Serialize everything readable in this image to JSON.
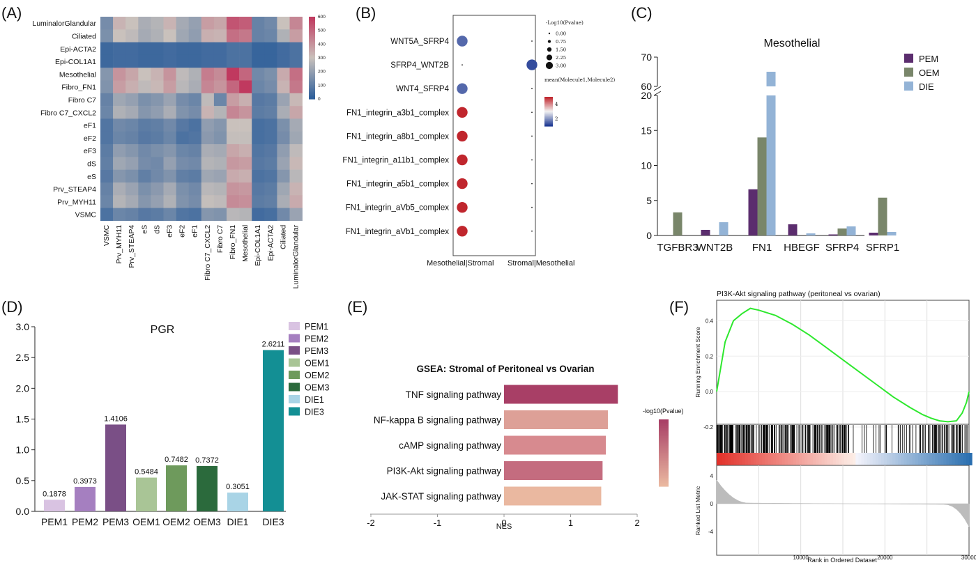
{
  "panel_labels": [
    "(A)",
    "(B)",
    "(C)",
    "(D)",
    "(E)",
    "(F)"
  ],
  "chart_data": [
    {
      "panel": "A",
      "type": "heatmap",
      "rows": [
        "LuminalorGlandular",
        "Ciliated",
        "Epi-ACTA2",
        "Epi-COL1A1",
        "Mesothelial",
        "Fibro_FN1",
        "Fibro C7",
        "Fibro C7_CXCL2",
        "eF1",
        "eF2",
        "eF3",
        "dS",
        "eS",
        "Prv_STEAP4",
        "Prv_MYH11",
        "VSMC"
      ],
      "columns": [
        "VSMC",
        "Prv_MYH11",
        "Prv_STEAP4",
        "eS",
        "dS",
        "eF3",
        "eF2",
        "eF1",
        "Fibro C7_CXCL2",
        "Fibro C7",
        "Fibro_FN1",
        "Mesothelial",
        "Epi-COL1A1",
        "Epi-ACTA2",
        "Ciliated",
        "LuminalorGlandular"
      ],
      "values": [
        [
          140,
          330,
          300,
          240,
          260,
          330,
          230,
          200,
          380,
          360,
          540,
          520,
          110,
          130,
          300,
          430
        ],
        [
          150,
          300,
          280,
          230,
          250,
          300,
          220,
          190,
          340,
          330,
          480,
          460,
          110,
          120,
          250,
          380
        ],
        [
          30,
          40,
          40,
          30,
          30,
          40,
          30,
          30,
          40,
          40,
          60,
          60,
          20,
          20,
          40,
          60
        ],
        [
          30,
          40,
          40,
          30,
          30,
          40,
          30,
          30,
          40,
          40,
          60,
          60,
          20,
          20,
          40,
          60
        ],
        [
          170,
          400,
          360,
          300,
          330,
          400,
          280,
          250,
          450,
          420,
          620,
          500,
          130,
          150,
          350,
          480
        ],
        [
          160,
          380,
          340,
          280,
          320,
          380,
          270,
          240,
          430,
          400,
          500,
          600,
          120,
          140,
          330,
          460
        ],
        [
          110,
          220,
          200,
          150,
          170,
          210,
          140,
          120,
          280,
          120,
          380,
          340,
          80,
          90,
          210,
          320
        ],
        [
          120,
          250,
          230,
          170,
          190,
          240,
          160,
          140,
          330,
          260,
          430,
          400,
          90,
          100,
          240,
          360
        ],
        [
          70,
          130,
          120,
          90,
          100,
          130,
          80,
          60,
          190,
          170,
          300,
          300,
          50,
          60,
          150,
          230
        ],
        [
          70,
          120,
          110,
          80,
          90,
          120,
          60,
          70,
          180,
          160,
          290,
          290,
          50,
          60,
          140,
          220
        ],
        [
          90,
          190,
          170,
          130,
          150,
          170,
          120,
          110,
          240,
          230,
          360,
          340,
          70,
          80,
          190,
          280
        ],
        [
          100,
          220,
          200,
          140,
          130,
          200,
          140,
          130,
          260,
          250,
          390,
          380,
          80,
          90,
          210,
          320
        ],
        [
          80,
          170,
          150,
          100,
          130,
          160,
          100,
          90,
          220,
          210,
          350,
          340,
          60,
          70,
          170,
          270
        ],
        [
          110,
          240,
          210,
          150,
          180,
          230,
          150,
          130,
          270,
          260,
          400,
          390,
          80,
          90,
          220,
          330
        ],
        [
          120,
          260,
          230,
          170,
          200,
          250,
          160,
          140,
          290,
          280,
          420,
          410,
          90,
          100,
          240,
          350
        ],
        [
          60,
          120,
          110,
          80,
          90,
          120,
          70,
          60,
          170,
          160,
          270,
          260,
          40,
          50,
          130,
          210
        ]
      ],
      "colorbar": {
        "min": 0,
        "max": 600,
        "ticks": [
          0,
          100,
          200,
          300,
          400,
          500,
          600
        ],
        "low": "#2d5e9a",
        "mid": "#c9c1bc",
        "high": "#c0395f"
      }
    },
    {
      "panel": "B",
      "type": "scatter",
      "pairs": [
        "WNT5A_SFRP4",
        "SFRP4_WNT2B",
        "WNT4_SFRP4",
        "FN1_integrin_a3b1_complex",
        "FN1_integrin_a8b1_complex",
        "FN1_integrin_a11b1_complex",
        "FN1_integrin_a5b1_complex",
        "FN1_integrin_aVb5_complex",
        "FN1_integrin_aVb1_complex"
      ],
      "x_categories": [
        "Mesothelial|Stromal",
        "Stromal|Mesothelial"
      ],
      "points": [
        {
          "pair": 0,
          "x": 0,
          "size": 3.0,
          "mean": 1.5
        },
        {
          "pair": 0,
          "x": 1,
          "size": 0.0,
          "mean": 1.0
        },
        {
          "pair": 1,
          "x": 0,
          "size": 0.0,
          "mean": 1.0
        },
        {
          "pair": 1,
          "x": 1,
          "size": 3.0,
          "mean": 1.2
        },
        {
          "pair": 2,
          "x": 0,
          "size": 3.0,
          "mean": 1.5
        },
        {
          "pair": 2,
          "x": 1,
          "size": 0.0,
          "mean": 1.0
        },
        {
          "pair": 3,
          "x": 0,
          "size": 3.0,
          "mean": 5.0
        },
        {
          "pair": 3,
          "x": 1,
          "size": 0.0,
          "mean": 1.0
        },
        {
          "pair": 4,
          "x": 0,
          "size": 3.0,
          "mean": 5.0
        },
        {
          "pair": 4,
          "x": 1,
          "size": 0.0,
          "mean": 1.0
        },
        {
          "pair": 5,
          "x": 0,
          "size": 3.0,
          "mean": 5.0
        },
        {
          "pair": 5,
          "x": 1,
          "size": 0.0,
          "mean": 1.0
        },
        {
          "pair": 6,
          "x": 0,
          "size": 3.0,
          "mean": 5.0
        },
        {
          "pair": 6,
          "x": 1,
          "size": 0.0,
          "mean": 1.0
        },
        {
          "pair": 7,
          "x": 0,
          "size": 3.0,
          "mean": 5.0
        },
        {
          "pair": 7,
          "x": 1,
          "size": 0.0,
          "mean": 1.0
        },
        {
          "pair": 8,
          "x": 0,
          "size": 3.0,
          "mean": 5.0
        },
        {
          "pair": 8,
          "x": 1,
          "size": 0.0,
          "mean": 1.0
        }
      ],
      "size_legend": {
        "title": "-Log10(Pvalue)",
        "values": [
          0.0,
          0.75,
          1.5,
          2.25,
          3.0
        ],
        "labels": [
          "0.00",
          "0.75",
          "1.50",
          "2.25",
          "3.00"
        ]
      },
      "color_legend": {
        "title": "mean(Molecule1,Molecule2)",
        "ticks": [
          2,
          4
        ],
        "range": [
          1,
          5
        ]
      }
    },
    {
      "panel": "C",
      "type": "bar",
      "title": "Mesothelial",
      "categories": [
        "TGFBR3",
        "WNT2B",
        "FN1",
        "HBEGF",
        "SFRP4",
        "SFRP1"
      ],
      "series": [
        {
          "name": "PEM",
          "values": [
            0,
            0.8,
            6.6,
            1.6,
            0.15,
            0.4
          ],
          "color": "#5b2d6e"
        },
        {
          "name": "OEM",
          "values": [
            3.3,
            0,
            14.0,
            0,
            1.0,
            5.4
          ],
          "color": "#79866a"
        },
        {
          "name": "DIE",
          "values": [
            0,
            1.9,
            65,
            0.3,
            1.3,
            0.5
          ],
          "color": "#93b3d6"
        }
      ],
      "y_lower_ticks": [
        0,
        5,
        10,
        15,
        20
      ],
      "y_upper_ticks": [
        60,
        70
      ],
      "y_break": [
        20,
        60
      ]
    },
    {
      "panel": "D",
      "type": "bar",
      "title": "PGR",
      "categories": [
        "PEM1",
        "PEM2",
        "PEM3",
        "OEM1",
        "OEM2",
        "OEM3",
        "DIE1",
        "DIE3"
      ],
      "values": [
        0.1878,
        0.3973,
        1.4106,
        0.5484,
        0.7482,
        0.7372,
        0.3051,
        2.6211
      ],
      "value_labels": [
        "0.1878",
        "0.3973",
        "1.4106",
        "0.5484",
        "0.7482",
        "0.7372",
        "0.3051",
        "2.6211"
      ],
      "colors": [
        "#d9c3e2",
        "#a57fc0",
        "#7a4f86",
        "#a9c596",
        "#6e9a5c",
        "#2b6a3c",
        "#a9d4e6",
        "#138f94"
      ],
      "ylim": [
        0,
        3.0
      ],
      "y_ticks": [
        "0.0",
        "0.5",
        "1.0",
        "1.5",
        "2.0",
        "2.5",
        "3.0"
      ],
      "legend": [
        "PEM1",
        "PEM2",
        "PEM3",
        "OEM1",
        "OEM2",
        "OEM3",
        "DIE1",
        "DIE3"
      ]
    },
    {
      "panel": "E",
      "type": "bar",
      "orientation": "horizontal",
      "title": "GSEA: Stromal of Peritoneal vs Ovarian",
      "categories": [
        "TNF signaling pathway",
        "NF-kappa B signaling pathway",
        "cAMP signaling pathway",
        "PI3K-Akt signaling pathway",
        "JAK-STAT signaling pathway"
      ],
      "values": [
        1.71,
        1.56,
        1.53,
        1.48,
        1.46
      ],
      "colors": [
        "#a83f66",
        "#dda097",
        "#d78a8f",
        "#c46c7f",
        "#eab8a0"
      ],
      "xlabel": "NES",
      "xlim": [
        -2,
        2
      ],
      "x_ticks": [
        "-2",
        "-1",
        "0",
        "1",
        "2"
      ],
      "colorbar_title": "-log10(Pvalue)"
    },
    {
      "panel": "F",
      "type": "line",
      "title": "PI3K-Akt signaling pathway (peritoneal vs ovarian)",
      "ylabel_top": "Running Enrichment Score",
      "ylabel_bottom": "Ranked List Metric",
      "xlabel": "Rank in Ordered Dataset",
      "x": [
        0,
        1000,
        2000,
        3000,
        4000,
        5000,
        7000,
        9000,
        11000,
        13000,
        15000,
        17000,
        19000,
        21000,
        23000,
        24500,
        25500,
        26500,
        27500,
        28500,
        29200,
        29700,
        30000
      ],
      "es": [
        0.0,
        0.28,
        0.4,
        0.44,
        0.47,
        0.46,
        0.43,
        0.38,
        0.32,
        0.25,
        0.18,
        0.11,
        0.04,
        -0.03,
        -0.09,
        -0.13,
        -0.15,
        -0.165,
        -0.17,
        -0.165,
        -0.12,
        -0.06,
        0.0
      ],
      "es_ticks": [
        "0.4",
        "0.2",
        "0.0",
        "-0.2"
      ],
      "metric_ticks": [
        "4",
        "0",
        "-4"
      ],
      "x_ticks": [
        "10000",
        "20000",
        "30000"
      ],
      "xlim": [
        0,
        30000
      ],
      "ylim_es": [
        -0.2,
        0.5
      ],
      "line_color": "#2ee82e"
    }
  ]
}
